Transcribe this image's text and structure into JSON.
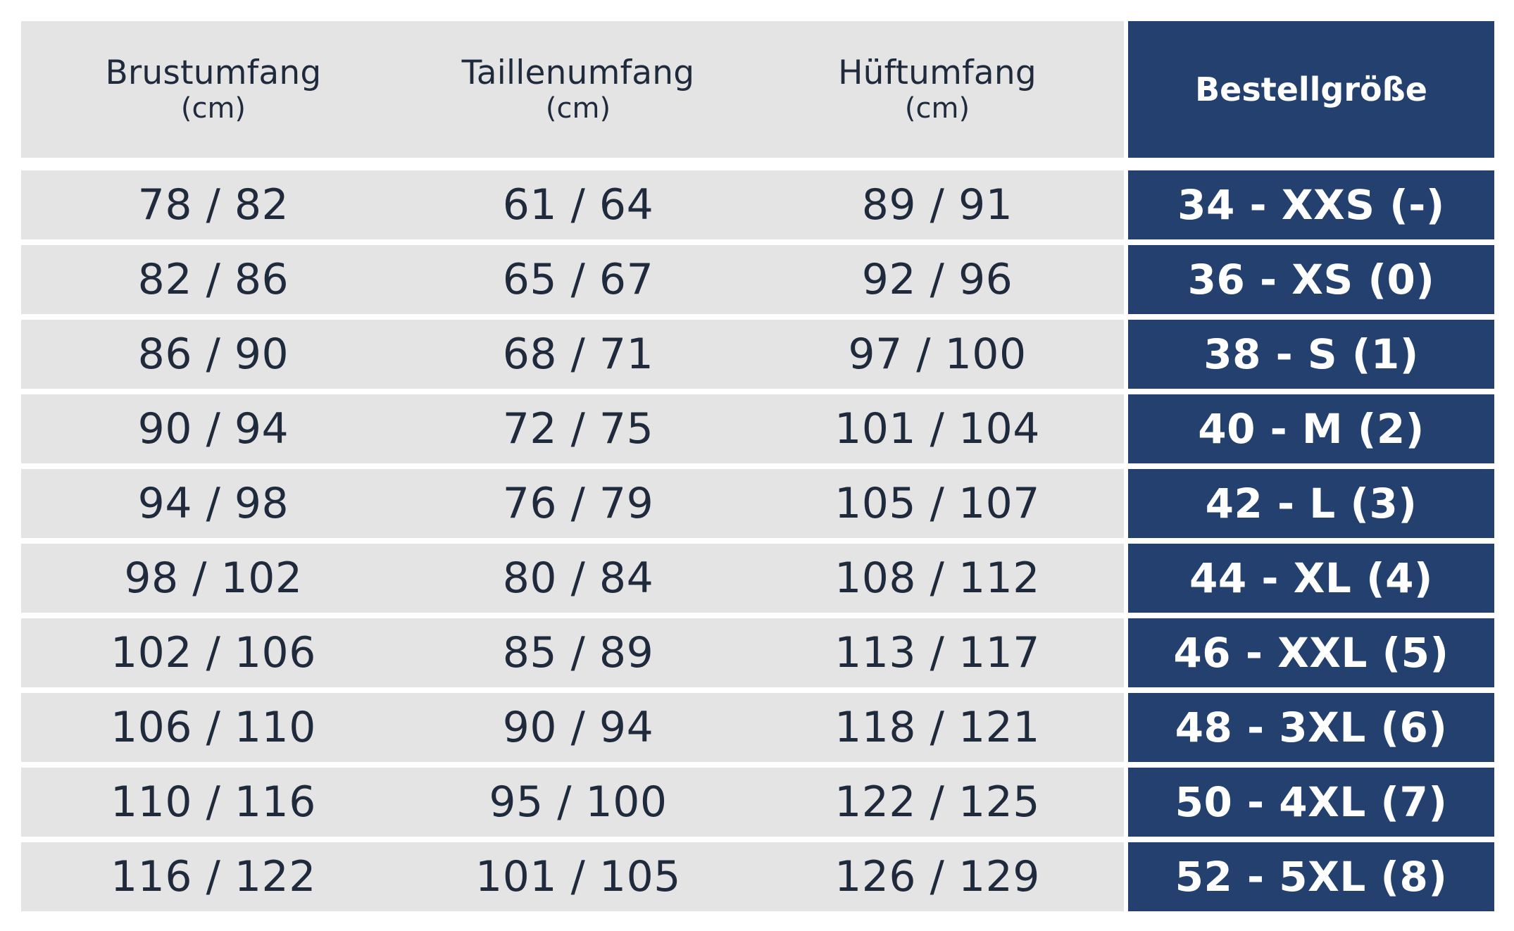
{
  "colors": {
    "row_background": "#e4e4e4",
    "accent_navy": "#23406f",
    "text_dark": "#1f2b3c",
    "text_light": "#ffffff"
  },
  "headers": [
    {
      "label": "Brustumfang",
      "unit": "(cm)"
    },
    {
      "label": "Taillenumfang",
      "unit": "(cm)"
    },
    {
      "label": "Hüftumfang",
      "unit": "(cm)"
    },
    {
      "label": "Bestellgröße"
    }
  ],
  "rows": [
    {
      "brust": "78 / 82",
      "taille": "61 / 64",
      "huefte": "89 / 91",
      "groesse": "34 - XXS (-)"
    },
    {
      "brust": "82 / 86",
      "taille": "65 / 67",
      "huefte": "92 / 96",
      "groesse": "36 - XS (0)"
    },
    {
      "brust": "86 / 90",
      "taille": "68 / 71",
      "huefte": "97 / 100",
      "groesse": "38 - S (1)"
    },
    {
      "brust": "90 / 94",
      "taille": "72 / 75",
      "huefte": "101 / 104",
      "groesse": "40 - M (2)"
    },
    {
      "brust": "94 / 98",
      "taille": "76 / 79",
      "huefte": "105 / 107",
      "groesse": "42 - L (3)"
    },
    {
      "brust": "98 / 102",
      "taille": "80 / 84",
      "huefte": "108 / 112",
      "groesse": "44 - XL (4)"
    },
    {
      "brust": "102 / 106",
      "taille": "85 / 89",
      "huefte": "113 / 117",
      "groesse": "46 - XXL (5)"
    },
    {
      "brust": "106 / 110",
      "taille": "90 / 94",
      "huefte": "118 / 121",
      "groesse": "48 - 3XL (6)"
    },
    {
      "brust": "110 / 116",
      "taille": "95 / 100",
      "huefte": "122 / 125",
      "groesse": "50 - 4XL (7)"
    },
    {
      "brust": "116 / 122",
      "taille": "101 / 105",
      "huefte": "126 / 129",
      "groesse": "52 - 5XL (8)"
    }
  ]
}
